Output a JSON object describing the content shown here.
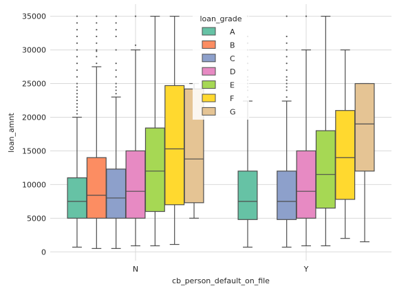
{
  "chart_data": {
    "type": "box",
    "xlabel": "cb_person_default_on_file",
    "ylabel": "loan_amnt",
    "categories": [
      "N",
      "Y"
    ],
    "ylim": [
      -1300,
      36800
    ],
    "yticks": [
      0,
      5000,
      10000,
      15000,
      20000,
      25000,
      30000,
      35000
    ],
    "ytick_labels": [
      "0",
      "5000",
      "10000",
      "15000",
      "20000",
      "25000",
      "30000",
      "35000"
    ],
    "grid": true,
    "legend": {
      "title": "loan_grade",
      "placement": "top-center"
    },
    "series": [
      {
        "name": "A",
        "color": "#66c2a5",
        "boxes": [
          {
            "category": "N",
            "whisker_low": 700,
            "q1": 5000,
            "median": 7500,
            "q3": 11000,
            "whisker_high": 20000,
            "outliers": [
              20500,
              21000,
              21500,
              22000,
              22500,
              23000,
              23500,
              24000,
              24500,
              25000,
              26000,
              27000,
              28000,
              29000,
              30000,
              31000,
              32000,
              33000,
              34000,
              35000
            ]
          },
          {
            "category": "Y",
            "whisker_low": 700,
            "q1": 4800,
            "median": 7500,
            "q3": 12000,
            "whisker_high": 22400,
            "outliers": [
              23000,
              24000,
              24500,
              25000,
              25500,
              26000,
              27000,
              28000,
              29000,
              30000,
              31000,
              32000,
              35000
            ]
          }
        ]
      },
      {
        "name": "B",
        "color": "#fc8d62",
        "boxes": [
          {
            "category": "N",
            "whisker_low": 500,
            "q1": 5000,
            "median": 8400,
            "q3": 14000,
            "whisker_high": 27500,
            "outliers": [
              28000,
              29000,
              29800,
              30000,
              31000,
              32000,
              33000,
              34000,
              35000
            ]
          }
        ]
      },
      {
        "name": "C",
        "color": "#8da0cb",
        "boxes": [
          {
            "category": "N",
            "whisker_low": 500,
            "q1": 5000,
            "median": 8000,
            "q3": 12300,
            "whisker_high": 23000,
            "outliers": [
              23500,
              24000,
              24500,
              25000,
              26000,
              27000,
              28000,
              30000,
              32000,
              33000,
              34000,
              35000
            ]
          },
          {
            "category": "Y",
            "whisker_low": 700,
            "q1": 4800,
            "median": 7500,
            "q3": 12000,
            "whisker_high": 22400,
            "outliers": [
              23000,
              24000,
              24500,
              25000,
              25500,
              26000,
              27000,
              28000,
              29000,
              30000,
              31000,
              32000,
              35000
            ]
          }
        ]
      },
      {
        "name": "D",
        "color": "#e78ac3",
        "boxes": [
          {
            "category": "N",
            "whisker_low": 900,
            "q1": 5000,
            "median": 9000,
            "q3": 15000,
            "whisker_high": 30000,
            "outliers": [
              30700,
              35000
            ]
          },
          {
            "category": "Y",
            "whisker_low": 900,
            "q1": 5000,
            "median": 9000,
            "q3": 15000,
            "whisker_high": 30000,
            "outliers": [
              35000
            ]
          }
        ]
      },
      {
        "name": "E",
        "color": "#a6d854",
        "boxes": [
          {
            "category": "N",
            "whisker_low": 900,
            "q1": 6000,
            "median": 12000,
            "q3": 18400,
            "whisker_high": 35000,
            "outliers": []
          },
          {
            "category": "Y",
            "whisker_low": 900,
            "q1": 6500,
            "median": 11500,
            "q3": 18000,
            "whisker_high": 35000,
            "outliers": []
          }
        ]
      },
      {
        "name": "F",
        "color": "#ffd92f",
        "boxes": [
          {
            "category": "N",
            "whisker_low": 1100,
            "q1": 7000,
            "median": 15300,
            "q3": 24700,
            "whisker_high": 35000,
            "outliers": []
          },
          {
            "category": "Y",
            "whisker_low": 2000,
            "q1": 7800,
            "median": 14000,
            "q3": 21000,
            "whisker_high": 30000,
            "outliers": []
          }
        ]
      },
      {
        "name": "G",
        "color": "#e5c494",
        "boxes": [
          {
            "category": "N",
            "whisker_low": 5000,
            "q1": 7300,
            "median": 13800,
            "q3": 24200,
            "whisker_high": 25000,
            "outliers": []
          },
          {
            "category": "Y",
            "whisker_low": 1500,
            "q1": 12000,
            "median": 19000,
            "q3": 25000,
            "whisker_high": 25000,
            "outliers": []
          }
        ]
      }
    ]
  }
}
